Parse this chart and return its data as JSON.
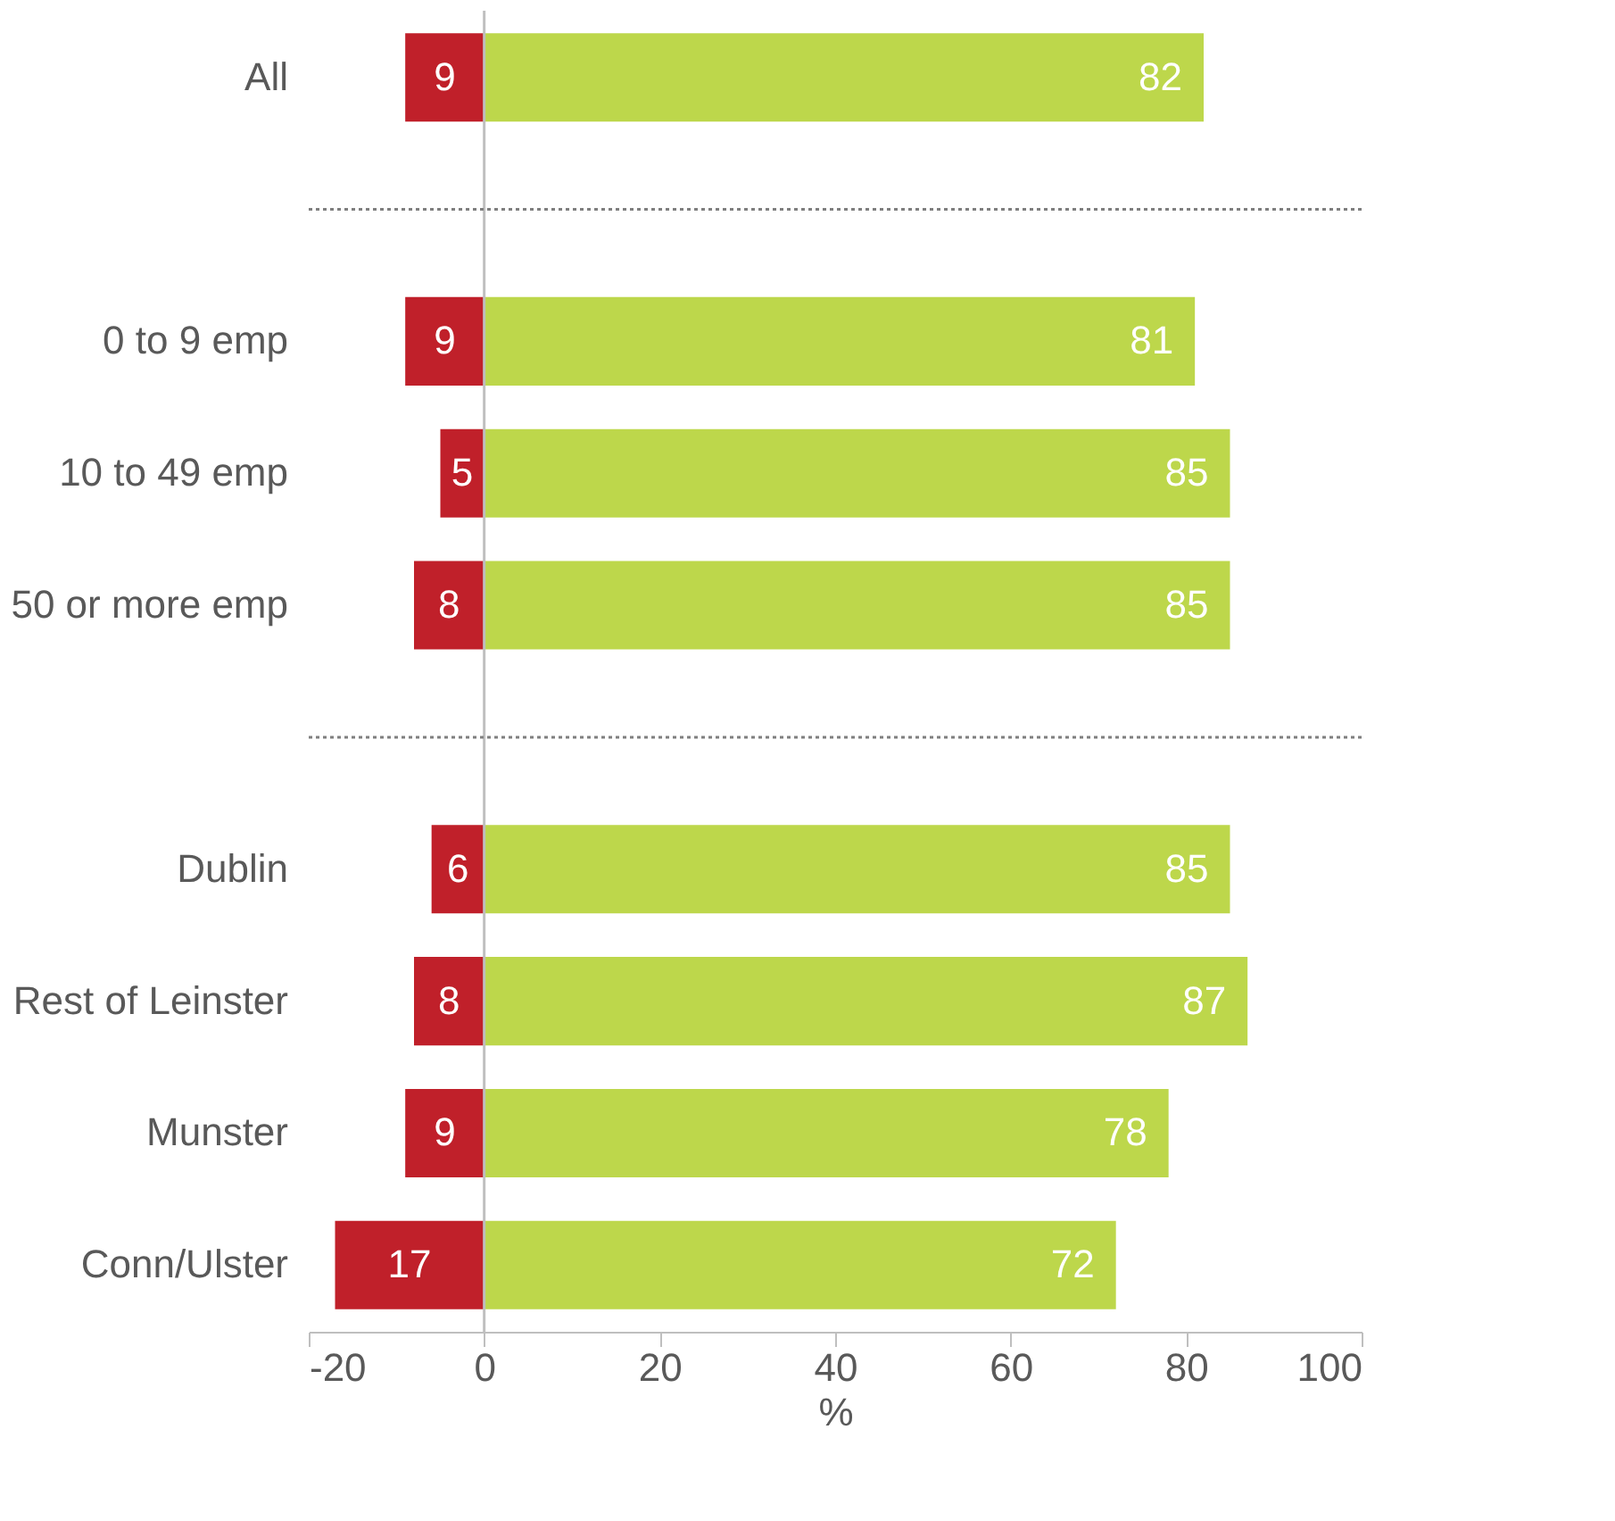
{
  "chart_data": {
    "type": "bar",
    "orientation": "horizontal",
    "xlabel": "%",
    "categories": [
      "All",
      null,
      "0 to 9 emp",
      "10 to 49 emp",
      "50 or more emp",
      null,
      "Dublin",
      "Rest of Leinster",
      "Munster",
      "Conn/Ulster"
    ],
    "series": [
      {
        "color": "#c0202a",
        "values": [
          9,
          null,
          9,
          5,
          8,
          null,
          6,
          8,
          9,
          17
        ],
        "base": [
          -9,
          null,
          -9,
          -5,
          -8,
          null,
          -6,
          -8,
          -9,
          -17
        ]
      },
      {
        "color": "#bdd74b",
        "values": [
          82,
          null,
          81,
          85,
          85,
          null,
          85,
          87,
          78,
          72
        ]
      }
    ],
    "data_labels": true,
    "xlim": [
      -20,
      100
    ],
    "xticks": [
      -20,
      0,
      20,
      40,
      60,
      80,
      100
    ]
  }
}
